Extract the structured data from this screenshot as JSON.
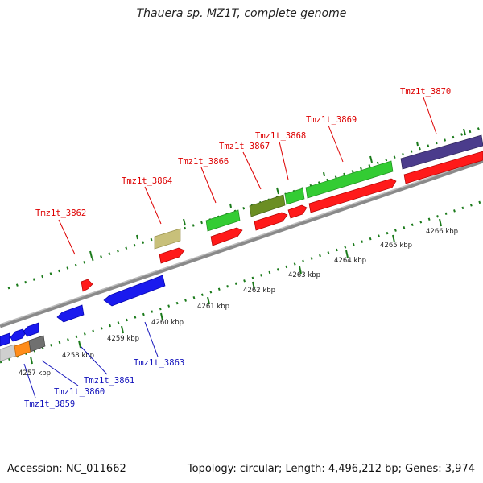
{
  "title": "Thauera sp. MZ1T, complete genome",
  "footer": {
    "accession": "Accession: NC_011662",
    "summary": "Topology: circular; Length: 4,496,212 bp; Genes: 3,974"
  },
  "colors": {
    "red": "#ff1a1a",
    "blue": "#1a1aee",
    "green": "#33cc33",
    "olive": "#6b8e23",
    "khaki": "#c8c07a",
    "purple": "#4b3c8c",
    "orange": "#ff8c1a",
    "lightgray": "#cfcfcf",
    "darkgray": "#707070",
    "top_label": "#dd0000",
    "bottom_label": "#1111bb",
    "tick": "#1a7a1a"
  },
  "top_labels": [
    {
      "text": "Tmz1t_3862"
    },
    {
      "text": "Tmz1t_3864"
    },
    {
      "text": "Tmz1t_3866"
    },
    {
      "text": "Tmz1t_3867"
    },
    {
      "text": "Tmz1t_3868"
    },
    {
      "text": "Tmz1t_3869"
    },
    {
      "text": "Tmz1t_3870"
    }
  ],
  "bottom_labels": [
    {
      "text": "Tmz1t_3859"
    },
    {
      "text": "Tmz1t_3860"
    },
    {
      "text": "Tmz1t_3861"
    },
    {
      "text": "Tmz1t_3863"
    }
  ],
  "kbp_labels": [
    "4257 kbp",
    "4258 kbp",
    "4259 kbp",
    "4260 kbp",
    "4261 kbp",
    "4262 kbp",
    "4263 kbp",
    "4264 kbp",
    "4265 kbp",
    "4266 kbp"
  ]
}
